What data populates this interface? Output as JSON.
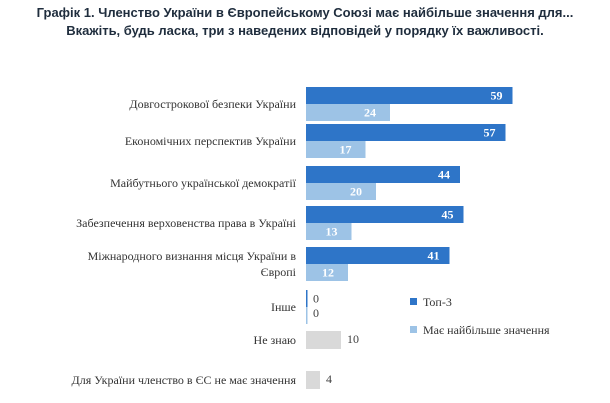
{
  "chart_data": {
    "type": "bar",
    "orientation": "horizontal",
    "title": [
      "Графік 1. Членство України в Європейському Союзі має найбільше значення для...",
      "Вкажіть, будь ласка, три з наведених відповідей у порядку їх важливості."
    ],
    "categories": [
      [
        "Довгострокової безпеки України"
      ],
      [
        "Економічних перспектив України"
      ],
      [
        "Майбутнього української демократії"
      ],
      [
        "Забезпечення верховенства права в Україні"
      ],
      [
        "Міжнародного визнання місця України в",
        "Європі"
      ],
      [
        "Інше"
      ],
      [
        "Не знаю"
      ],
      [
        "Для України членство в ЄС не має значення"
      ]
    ],
    "series": [
      {
        "name": "Топ-3",
        "color": "#2e75c8",
        "values": [
          59,
          57,
          44,
          45,
          41,
          0,
          null,
          null
        ]
      },
      {
        "name": "Має найбільше значення",
        "color": "#9dc3e6",
        "values": [
          24,
          17,
          20,
          13,
          12,
          0,
          null,
          null
        ]
      },
      {
        "name": "",
        "color": "#d9d9d9",
        "values": [
          null,
          null,
          null,
          null,
          null,
          null,
          10,
          4
        ]
      }
    ],
    "legend_position": "right",
    "grid": false,
    "xlim": [
      0,
      60
    ]
  }
}
